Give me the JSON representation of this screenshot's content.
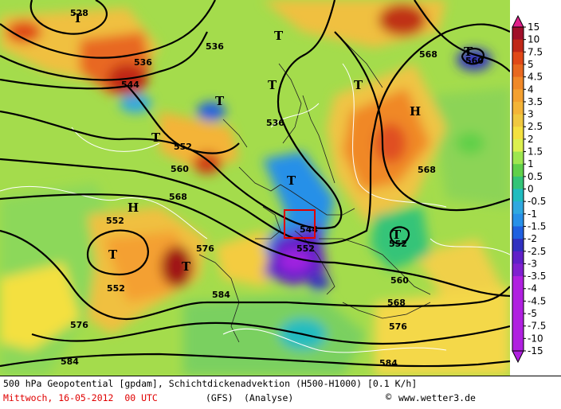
{
  "map": {
    "contour_labels": [
      "528",
      "536",
      "544",
      "552",
      "552",
      "552",
      "560",
      "568",
      "568",
      "568",
      "576",
      "584",
      "536",
      "544",
      "552",
      "560",
      "568",
      "576",
      "584",
      "560"
    ],
    "pressure_centers": [
      "T",
      "T",
      "T",
      "T",
      "T",
      "T",
      "T",
      "H",
      "H",
      "T",
      "T",
      "T",
      "T"
    ]
  },
  "legend": {
    "colors": [
      "#e0208a",
      "#a0102a",
      "#c02818",
      "#e04818",
      "#e86820",
      "#f08828",
      "#f4a030",
      "#f4b438",
      "#f0c840",
      "#f4e040",
      "#dcf050",
      "#9ee650",
      "#60d04a",
      "#34c478",
      "#20bcc0",
      "#30a8e0",
      "#2890e8",
      "#2060e0",
      "#3030c0",
      "#6020c8",
      "#8020d0",
      "#b020e0"
    ],
    "ticks": [
      "15",
      "10",
      "7.5",
      "5",
      "4.5",
      "4",
      "3.5",
      "3",
      "2.5",
      "2",
      "1.5",
      "1",
      "0.5",
      "0",
      "-0.5",
      "-1",
      "-1.5",
      "-2",
      "-2.5",
      "-3",
      "-3.5",
      "-4",
      "-4.5",
      "-5",
      "-7.5",
      "-10",
      "-15"
    ]
  },
  "footer": {
    "line1": "500 hPa Geopotential [gpdam], Schichtdickenadvektion (H500-H1000) [0.1 K/h]",
    "date": "Mittwoch, 16-05-2012  00 UTC",
    "model": "(GFS)",
    "analysis": "(Analyse)",
    "copyright_symbol": "©",
    "site": "www.wetter3.de",
    "date_color": "#e00000"
  }
}
